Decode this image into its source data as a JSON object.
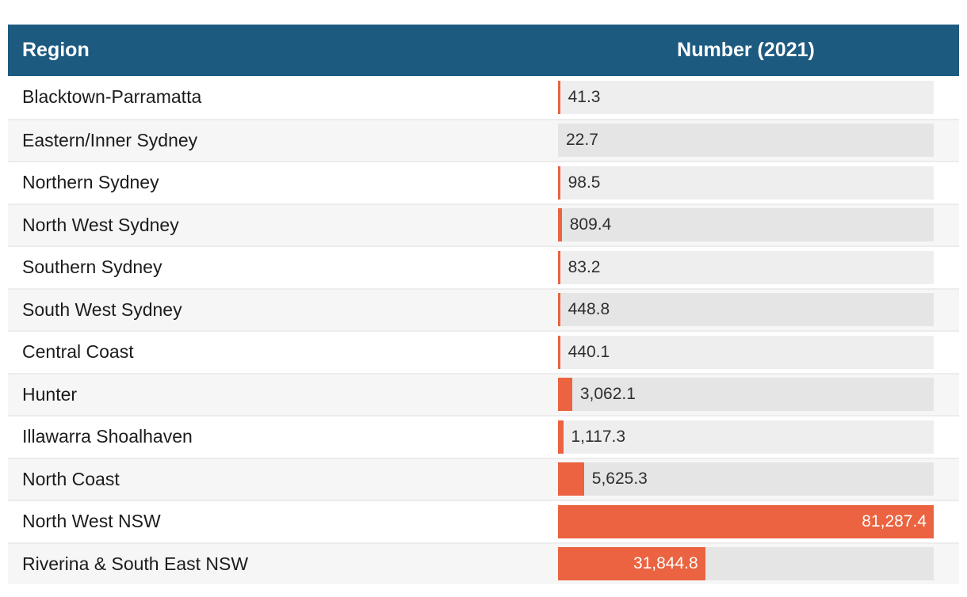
{
  "table": {
    "columns": [
      "Region",
      "Number (2021)"
    ]
  },
  "colors": {
    "header_bg": "#1d5a80",
    "header_text": "#ffffff",
    "bar_fill": "#eb6340",
    "track_odd": "#eeeeee",
    "track_even": "#e5e5e5",
    "row_alt_bg": "#f6f6f6",
    "label_dark": "#2f2f2f",
    "label_light": "#ffffff"
  },
  "chart_data": {
    "type": "bar",
    "orientation": "horizontal",
    "title": "",
    "xlabel": "Number (2021)",
    "ylabel": "Region",
    "xlim": [
      0,
      81287.4
    ],
    "grid": false,
    "legend": null,
    "categories": [
      "Blacktown-Parramatta",
      "Eastern/Inner Sydney",
      "Northern Sydney",
      "North West Sydney",
      "Southern Sydney",
      "South West Sydney",
      "Central Coast",
      "Hunter",
      "Illawarra Shoalhaven",
      "North Coast",
      "North West NSW",
      "Riverina & South East NSW"
    ],
    "values": [
      41.3,
      22.7,
      98.5,
      809.4,
      83.2,
      448.8,
      440.1,
      3062.1,
      1117.3,
      5625.3,
      81287.4,
      31844.8
    ],
    "value_labels": [
      "41.3",
      "22.7",
      "98.5",
      "809.4",
      "83.2",
      "448.8",
      "440.1",
      "3,062.1",
      "1,117.3",
      "5,625.3",
      "81,287.4",
      "31,844.8"
    ]
  }
}
